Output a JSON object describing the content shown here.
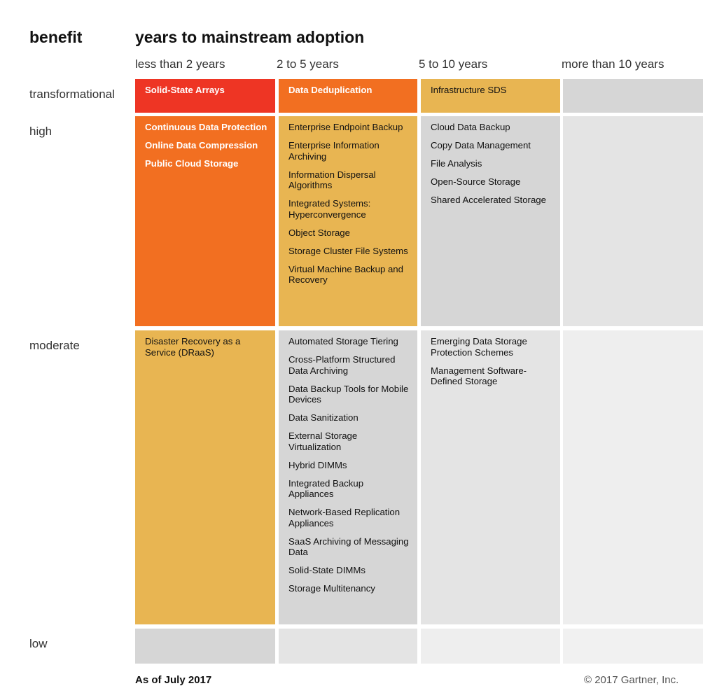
{
  "header": {
    "benefit": "benefit",
    "years": "years to mainstream adoption"
  },
  "columns": [
    "less than 2 years",
    "2 to 5 years",
    "5 to 10 years",
    "more than 10 years"
  ],
  "rows": [
    "transformational",
    "high",
    "moderate",
    "low"
  ],
  "colors": {
    "red": "#ee3524",
    "orange": "#f26f21",
    "gold": "#e8b552",
    "gray_dark": "#d6d6d6",
    "gray_mid": "#e4e4e4",
    "gray_light": "#eeeeee"
  },
  "cells": {
    "transformational": [
      [
        "Solid-State Arrays"
      ],
      [
        "Data Deduplication"
      ],
      [
        "Infrastructure SDS"
      ],
      []
    ],
    "high": [
      [
        "Continuous Data Protection",
        "Online Data Compression",
        "Public Cloud Storage"
      ],
      [
        "Enterprise Endpoint Backup",
        "Enterprise Information Archiving",
        "Information Dispersal Algorithms",
        "Integrated Systems: Hyperconvergence",
        "Object Storage",
        "Storage Cluster File Systems",
        "Virtual Machine Backup and Recovery"
      ],
      [
        "Cloud Data Backup",
        "Copy Data Management",
        "File Analysis",
        "Open-Source Storage",
        "Shared Accelerated Storage"
      ],
      []
    ],
    "moderate": [
      [
        "Disaster Recovery as a Service (DRaaS)"
      ],
      [
        "Automated Storage Tiering",
        "Cross-Platform Structured Data Archiving",
        "Data Backup Tools for Mobile Devices",
        "Data Sanitization",
        "External Storage Virtualization",
        "Hybrid DIMMs",
        "Integrated Backup Appliances",
        "Network-Based Replication Appliances",
        "SaaS Archiving of Messaging Data",
        "Solid-State DIMMs",
        "Storage Multitenancy"
      ],
      [
        "Emerging Data Storage Protection Schemes",
        "Management Software-Defined Storage"
      ],
      []
    ],
    "low": [
      [],
      [],
      [],
      []
    ]
  },
  "footer": {
    "date": "As of July 2017",
    "copyright": "© 2017 Gartner, Inc."
  }
}
